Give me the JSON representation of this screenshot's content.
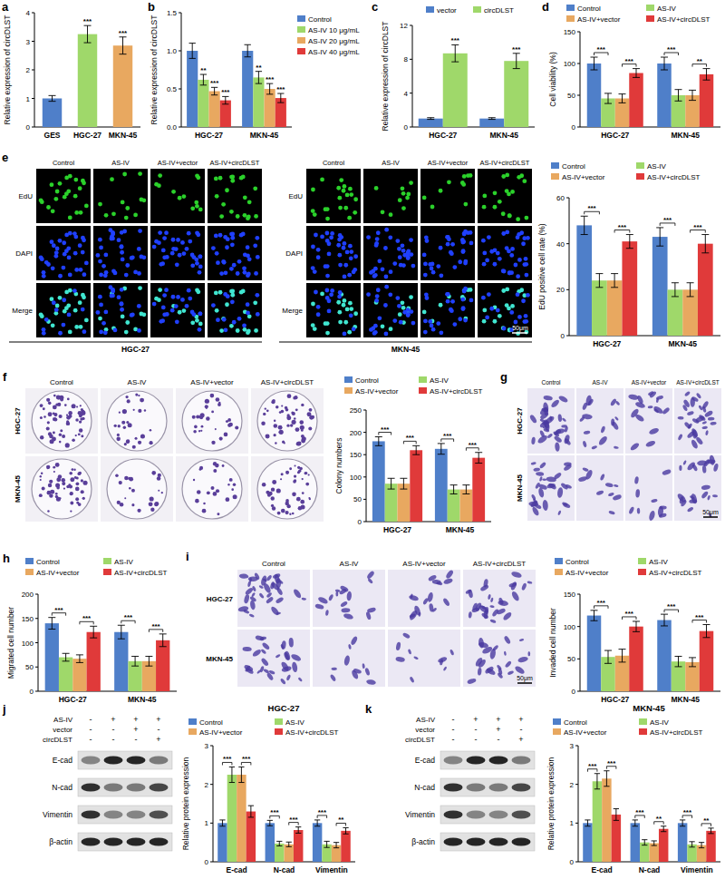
{
  "chart_data": [
    {
      "panel_label": "a",
      "type": "bar",
      "ylabel": "Relative expression of circDLST",
      "categories": [
        "GES",
        "HGC-27",
        "MKN-45"
      ],
      "values": [
        1.0,
        3.25,
        2.85
      ],
      "errors": [
        0.1,
        0.3,
        0.3
      ],
      "colors": [
        "#4f7fc9",
        "#9fd86a",
        "#e8a860"
      ],
      "ylim": [
        0,
        4
      ],
      "yticks": [
        0,
        1,
        2,
        3,
        4
      ],
      "annotations": [
        {
          "text": "***",
          "category": "HGC-27"
        },
        {
          "text": "***",
          "category": "MKN-45"
        }
      ]
    },
    {
      "panel_label": "b",
      "type": "bar",
      "ylabel": "Relative expression of circDLST",
      "categories": [
        "HGC-27",
        "MKN-45"
      ],
      "series": [
        {
          "name": "Control",
          "color": "#4f7fc9",
          "values": [
            1.0,
            1.0
          ],
          "errors": [
            0.1,
            0.08
          ]
        },
        {
          "name": "AS-IV 10 μg/mL",
          "color": "#9fd86a",
          "values": [
            0.62,
            0.65
          ],
          "errors": [
            0.07,
            0.08
          ]
        },
        {
          "name": "AS-IV 20 μg/mL",
          "color": "#e8a860",
          "values": [
            0.47,
            0.5
          ],
          "errors": [
            0.05,
            0.07
          ]
        },
        {
          "name": "AS-IV 40 μg/mL",
          "color": "#e03a3a",
          "values": [
            0.35,
            0.38
          ],
          "errors": [
            0.05,
            0.06
          ]
        }
      ],
      "ylim": [
        0,
        1.5
      ],
      "yticks": [
        {
          "value": 0,
          "label": "0.0"
        },
        {
          "value": 0.5,
          "label": "0.5"
        },
        {
          "value": 1,
          "label": "1.0"
        },
        {
          "value": 1.5,
          "label": "1.5"
        }
      ],
      "annotations": [
        {
          "text": "**",
          "category": "HGC-27",
          "series": "AS-IV 10 μg/mL"
        },
        {
          "text": "***",
          "category": "HGC-27",
          "series": "AS-IV 20 μg/mL"
        },
        {
          "text": "***",
          "category": "HGC-27",
          "series": "AS-IV 40 μg/mL"
        },
        {
          "text": "**",
          "category": "MKN-45",
          "series": "AS-IV 10 μg/mL"
        },
        {
          "text": "***",
          "category": "MKN-45",
          "series": "AS-IV 20 μg/mL"
        },
        {
          "text": "***",
          "category": "MKN-45",
          "series": "AS-IV 40 μg/mL"
        }
      ]
    },
    {
      "panel_label": "c",
      "type": "bar",
      "ylabel": "Relative expression of circDLST",
      "categories": [
        "HGC-27",
        "MKN-45"
      ],
      "series": [
        {
          "name": "vector",
          "color": "#4f7fc9",
          "values": [
            1.0,
            1.0
          ],
          "errors": [
            0.1,
            0.1
          ]
        },
        {
          "name": "circDLST",
          "color": "#9fd86a",
          "values": [
            8.7,
            7.8
          ],
          "errors": [
            1.0,
            0.9
          ]
        }
      ],
      "ylim": [
        0,
        12
      ],
      "yticks": [
        0,
        4,
        8,
        12
      ],
      "annotations": [
        {
          "text": "***",
          "category": "HGC-27",
          "series": "circDLST"
        },
        {
          "text": "***",
          "category": "MKN-45",
          "series": "circDLST"
        }
      ]
    },
    {
      "panel_label": "d",
      "type": "bar",
      "ylabel": "Cell viability (%)",
      "categories": [
        "HGC-27",
        "MKN-45"
      ],
      "series": [
        {
          "name": "Control",
          "color": "#4f7fc9",
          "values": [
            100,
            100
          ],
          "errors": [
            10,
            10
          ]
        },
        {
          "name": "AS-IV",
          "color": "#9fd86a",
          "values": [
            45,
            50
          ],
          "errors": [
            8,
            9
          ]
        },
        {
          "name": "AS-IV+vector",
          "color": "#e8a860",
          "values": [
            45,
            50
          ],
          "errors": [
            7,
            8
          ]
        },
        {
          "name": "AS-IV+circDLST",
          "color": "#e03a3a",
          "values": [
            85,
            83
          ],
          "errors": [
            7,
            9
          ]
        }
      ],
      "ylim": [
        0,
        150
      ],
      "yticks": [
        0,
        50,
        100,
        150
      ],
      "annotations": [
        {
          "text": "***",
          "category": "HGC-27",
          "from": "Control",
          "to": "AS-IV"
        },
        {
          "text": "***",
          "category": "HGC-27",
          "from": "AS-IV+vector",
          "to": "AS-IV+circDLST"
        },
        {
          "text": "***",
          "category": "MKN-45",
          "from": "Control",
          "to": "AS-IV"
        },
        {
          "text": "**",
          "category": "MKN-45",
          "from": "AS-IV+vector",
          "to": "AS-IV+circDLST"
        }
      ]
    },
    {
      "type": "bar",
      "ylabel": "EdU positive cell rate (%)",
      "categories": [
        "HGC-27",
        "MKN-45"
      ],
      "series": [
        {
          "name": "Control",
          "color": "#4f7fc9",
          "values": [
            48,
            43
          ],
          "errors": [
            4,
            4
          ]
        },
        {
          "name": "AS-IV",
          "color": "#9fd86a",
          "values": [
            24,
            20
          ],
          "errors": [
            3,
            3
          ]
        },
        {
          "name": "AS-IV+vector",
          "color": "#e8a860",
          "values": [
            24,
            20
          ],
          "errors": [
            3,
            3
          ]
        },
        {
          "name": "AS-IV+circDLST",
          "color": "#e03a3a",
          "values": [
            41,
            40
          ],
          "errors": [
            3,
            4
          ]
        }
      ],
      "ylim": [
        0,
        60
      ],
      "yticks": [
        0,
        20,
        40,
        60
      ],
      "annotations": [
        {
          "text": "***",
          "category": "HGC-27",
          "from": "Control",
          "to": "AS-IV"
        },
        {
          "text": "***",
          "category": "HGC-27",
          "from": "AS-IV+vector",
          "to": "AS-IV+circDLST"
        },
        {
          "text": "***",
          "category": "MKN-45",
          "from": "Control",
          "to": "AS-IV"
        },
        {
          "text": "***",
          "category": "MKN-45",
          "from": "AS-IV+vector",
          "to": "AS-IV+circDLST"
        }
      ]
    },
    {
      "type": "bar",
      "ylabel": "Colony numbers",
      "categories": [
        "HGC-27",
        "MKN-45"
      ],
      "series": [
        {
          "name": "Control",
          "color": "#4f7fc9",
          "values": [
            180,
            163
          ],
          "errors": [
            10,
            12
          ]
        },
        {
          "name": "AS-IV",
          "color": "#9fd86a",
          "values": [
            85,
            72
          ],
          "errors": [
            12,
            10
          ]
        },
        {
          "name": "AS-IV+vector",
          "color": "#e8a860",
          "values": [
            85,
            72
          ],
          "errors": [
            12,
            10
          ]
        },
        {
          "name": "AS-IV+circDLST",
          "color": "#e03a3a",
          "values": [
            160,
            143
          ],
          "errors": [
            10,
            12
          ]
        }
      ],
      "ylim": [
        0,
        250
      ],
      "yticks": [
        0,
        50,
        100,
        150,
        200,
        250
      ],
      "annotations": [
        {
          "text": "***",
          "category": "HGC-27",
          "from": "Control",
          "to": "AS-IV"
        },
        {
          "text": "***",
          "category": "HGC-27",
          "from": "AS-IV+vector",
          "to": "AS-IV+circDLST"
        },
        {
          "text": "***",
          "category": "MKN-45",
          "from": "Control",
          "to": "AS-IV"
        },
        {
          "text": "***",
          "category": "MKN-45",
          "from": "AS-IV+vector",
          "to": "AS-IV+circDLST"
        }
      ]
    },
    {
      "panel_label": "h",
      "type": "bar",
      "ylabel": "Migrated cell number",
      "categories": [
        "HGC-27",
        "MKN-45"
      ],
      "series": [
        {
          "name": "Control",
          "color": "#4f7fc9",
          "values": [
            140,
            122
          ],
          "errors": [
            12,
            14
          ]
        },
        {
          "name": "AS-IV",
          "color": "#9fd86a",
          "values": [
            70,
            62
          ],
          "errors": [
            8,
            10
          ]
        },
        {
          "name": "AS-IV+vector",
          "color": "#e8a860",
          "values": [
            67,
            62
          ],
          "errors": [
            8,
            10
          ]
        },
        {
          "name": "AS-IV+circDLST",
          "color": "#e03a3a",
          "values": [
            122,
            105
          ],
          "errors": [
            12,
            13
          ]
        }
      ],
      "ylim": [
        0,
        200
      ],
      "yticks": [
        0,
        50,
        100,
        150,
        200
      ],
      "annotations": [
        {
          "text": "***",
          "category": "HGC-27",
          "from": "Control",
          "to": "AS-IV"
        },
        {
          "text": "***",
          "category": "HGC-27",
          "from": "AS-IV+vector",
          "to": "AS-IV+circDLST"
        },
        {
          "text": "***",
          "category": "MKN-45",
          "from": "Control",
          "to": "AS-IV"
        },
        {
          "text": "***",
          "category": "MKN-45",
          "from": "AS-IV+vector",
          "to": "AS-IV+circDLST"
        }
      ]
    },
    {
      "type": "bar",
      "ylabel": "Invaded cell number",
      "categories": [
        "HGC-27",
        "MKN-45"
      ],
      "series": [
        {
          "name": "Control",
          "color": "#4f7fc9",
          "values": [
            117,
            110
          ],
          "errors": [
            8,
            9
          ]
        },
        {
          "name": "AS-IV",
          "color": "#9fd86a",
          "values": [
            53,
            46
          ],
          "errors": [
            10,
            8
          ]
        },
        {
          "name": "AS-IV+vector",
          "color": "#e8a860",
          "values": [
            55,
            45
          ],
          "errors": [
            10,
            7
          ]
        },
        {
          "name": "AS-IV+circDLST",
          "color": "#e03a3a",
          "values": [
            100,
            93
          ],
          "errors": [
            8,
            10
          ]
        }
      ],
      "ylim": [
        0,
        150
      ],
      "yticks": [
        0,
        50,
        100,
        150
      ],
      "annotations": [
        {
          "text": "***",
          "category": "HGC-27",
          "from": "Control",
          "to": "AS-IV"
        },
        {
          "text": "***",
          "category": "HGC-27",
          "from": "AS-IV+vector",
          "to": "AS-IV+circDLST"
        },
        {
          "text": "***",
          "category": "MKN-45",
          "from": "Control",
          "to": "AS-IV"
        },
        {
          "text": "***",
          "category": "MKN-45",
          "from": "AS-IV+vector",
          "to": "AS-IV+circDLST"
        }
      ]
    },
    {
      "type": "bar",
      "title": "HGC-27",
      "ylabel": "Relative protein expression",
      "categories": [
        "E-cad",
        "N-cad",
        "Vimentin"
      ],
      "series": [
        {
          "name": "Control",
          "color": "#4f7fc9",
          "values": [
            1.0,
            1.0,
            1.0
          ],
          "errors": [
            0.08,
            0.07,
            0.08
          ]
        },
        {
          "name": "AS-IV",
          "color": "#9fd86a",
          "values": [
            2.25,
            0.47,
            0.45
          ],
          "errors": [
            0.2,
            0.06,
            0.08
          ]
        },
        {
          "name": "AS-IV+vector",
          "color": "#e8a860",
          "values": [
            2.25,
            0.45,
            0.43
          ],
          "errors": [
            0.2,
            0.06,
            0.07
          ]
        },
        {
          "name": "AS-IV+circDLST",
          "color": "#e03a3a",
          "values": [
            1.3,
            0.82,
            0.8
          ],
          "errors": [
            0.15,
            0.08,
            0.08
          ]
        }
      ],
      "ylim": [
        0,
        3
      ],
      "yticks": [
        0,
        1,
        2,
        3
      ],
      "annotations": [
        {
          "text": "***",
          "category": "E-cad",
          "from": "Control",
          "to": "AS-IV"
        },
        {
          "text": "***",
          "category": "E-cad",
          "from": "AS-IV+vector",
          "to": "AS-IV+circDLST"
        },
        {
          "text": "***",
          "category": "N-cad",
          "from": "Control",
          "to": "AS-IV"
        },
        {
          "text": "***",
          "category": "N-cad",
          "from": "AS-IV+vector",
          "to": "AS-IV+circDLST"
        },
        {
          "text": "***",
          "category": "Vimentin",
          "from": "Control",
          "to": "AS-IV"
        },
        {
          "text": "**",
          "category": "Vimentin",
          "from": "AS-IV+vector",
          "to": "AS-IV+circDLST"
        }
      ]
    },
    {
      "type": "bar",
      "title": "MKN-45",
      "ylabel": "Relative protein expression",
      "categories": [
        "E-cad",
        "N-cad",
        "Vimentin"
      ],
      "series": [
        {
          "name": "Control",
          "color": "#4f7fc9",
          "values": [
            1.0,
            1.0,
            1.0
          ],
          "errors": [
            0.08,
            0.08,
            0.08
          ]
        },
        {
          "name": "AS-IV",
          "color": "#9fd86a",
          "values": [
            2.08,
            0.5,
            0.45
          ],
          "errors": [
            0.2,
            0.07,
            0.07
          ]
        },
        {
          "name": "AS-IV+vector",
          "color": "#e8a860",
          "values": [
            2.15,
            0.48,
            0.43
          ],
          "errors": [
            0.2,
            0.06,
            0.07
          ]
        },
        {
          "name": "AS-IV+circDLST",
          "color": "#e03a3a",
          "values": [
            1.22,
            0.85,
            0.8
          ],
          "errors": [
            0.15,
            0.07,
            0.07
          ]
        }
      ],
      "ylim": [
        0,
        3
      ],
      "yticks": [
        0,
        1,
        2,
        3
      ],
      "annotations": [
        {
          "text": "***",
          "category": "E-cad",
          "from": "Control",
          "to": "AS-IV"
        },
        {
          "text": "***",
          "category": "E-cad",
          "from": "AS-IV+vector",
          "to": "AS-IV+circDLST"
        },
        {
          "text": "***",
          "category": "N-cad",
          "from": "Control",
          "to": "AS-IV"
        },
        {
          "text": "**",
          "category": "N-cad",
          "from": "AS-IV+vector",
          "to": "AS-IV+circDLST"
        },
        {
          "text": "***",
          "category": "Vimentin",
          "from": "Control",
          "to": "AS-IV"
        },
        {
          "text": "**",
          "category": "Vimentin",
          "from": "AS-IV+vector",
          "to": "AS-IV+circDLST"
        }
      ]
    }
  ],
  "image_panels": [
    {
      "panel_label": "e",
      "type": "fluorescence",
      "groups": [
        "HGC-27",
        "MKN-45"
      ],
      "columns": [
        "Control",
        "AS-IV",
        "AS-IV+vector",
        "AS-IV+circDLST"
      ],
      "rows": [
        "EdU",
        "DAPI",
        "Merge"
      ],
      "scale_bar": "50μm"
    },
    {
      "panel_label": "f",
      "type": "colony",
      "columns": [
        "Control",
        "AS-IV",
        "AS-IV+vector",
        "AS-IV+circDLST"
      ],
      "rows": [
        "HGC-27",
        "MKN-45"
      ]
    },
    {
      "panel_label": "g",
      "type": "transwell",
      "columns": [
        "Control",
        "AS-IV",
        "AS-IV+vector",
        "AS-IV+circDLST"
      ],
      "rows": [
        "HGC-27",
        "MKN-45"
      ],
      "scale_bar": "50μm"
    },
    {
      "panel_label": "i",
      "type": "transwell",
      "columns": [
        "Control",
        "AS-IV",
        "AS-IV+vector",
        "AS-IV+circDLST"
      ],
      "rows": [
        "HGC-27",
        "MKN-45"
      ],
      "scale_bar": "50μm"
    },
    {
      "panel_label": "j",
      "type": "blot",
      "conditions": [
        {
          "name": "AS-IV",
          "signs": [
            "-",
            "+",
            "+",
            "+"
          ]
        },
        {
          "name": "vector",
          "signs": [
            "-",
            "-",
            "+",
            "-"
          ]
        },
        {
          "name": "circDLST",
          "signs": [
            "-",
            "-",
            "-",
            "+"
          ]
        }
      ],
      "bands": [
        "E-cad",
        "N-cad",
        "Vimentin",
        "β-actin"
      ]
    },
    {
      "panel_label": "k",
      "type": "blot",
      "conditions": [
        {
          "name": "AS-IV",
          "signs": [
            "-",
            "+",
            "+",
            "+"
          ]
        },
        {
          "name": "vector",
          "signs": [
            "-",
            "-",
            "+",
            "-"
          ]
        },
        {
          "name": "circDLST",
          "signs": [
            "-",
            "-",
            "-",
            "+"
          ]
        }
      ],
      "bands": [
        "E-cad",
        "N-cad",
        "Vimentin",
        "β-actin"
      ]
    }
  ]
}
